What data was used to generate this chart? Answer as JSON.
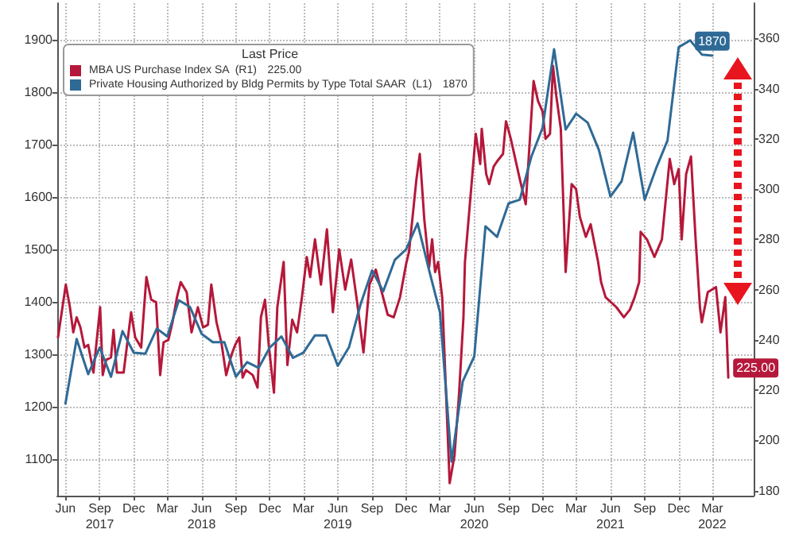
{
  "chart_data": {
    "type": "line",
    "legend_title": "Last Price",
    "legend": "top left",
    "grid": true,
    "marker": "none",
    "line_style": "solid",
    "xlim": [
      "2017-05-10",
      "2022-06-20"
    ],
    "xticks": [
      {
        "value": "2017-06-01",
        "label": "Jun"
      },
      {
        "value": "2017-09-01",
        "label": "Sep\n2017"
      },
      {
        "value": "2017-12-01",
        "label": "Dec"
      },
      {
        "value": "2018-03-01",
        "label": "Mar"
      },
      {
        "value": "2018-06-01",
        "label": "Jun\n2018"
      },
      {
        "value": "2018-09-01",
        "label": "Sep"
      },
      {
        "value": "2018-12-01",
        "label": "Dec"
      },
      {
        "value": "2019-03-01",
        "label": "Mar"
      },
      {
        "value": "2019-06-01",
        "label": "Jun\n2019"
      },
      {
        "value": "2019-09-01",
        "label": "Sep"
      },
      {
        "value": "2019-12-01",
        "label": "Dec"
      },
      {
        "value": "2020-03-01",
        "label": "Mar"
      },
      {
        "value": "2020-06-01",
        "label": "Jun\n2020"
      },
      {
        "value": "2020-09-01",
        "label": "Sep"
      },
      {
        "value": "2020-12-01",
        "label": "Dec"
      },
      {
        "value": "2021-03-01",
        "label": "Mar"
      },
      {
        "value": "2021-06-01",
        "label": "Jun\n2021"
      },
      {
        "value": "2021-09-01",
        "label": "Sep"
      },
      {
        "value": "2021-12-01",
        "label": "Dec"
      },
      {
        "value": "2022-03-01",
        "label": "Mar\n2022"
      }
    ],
    "ylim": [
      1030,
      1970
    ],
    "yticks": [
      1100,
      1200,
      1300,
      1400,
      1500,
      1600,
      1700,
      1800,
      1900
    ],
    "y2lim": [
      178,
      374
    ],
    "y2ticks": [
      180,
      200,
      220,
      240,
      260,
      280,
      300,
      320,
      340,
      360
    ],
    "series": [
      {
        "name": "MBA US Purchase Index SA  (R1)",
        "color": "#b5183a",
        "axis": "y2",
        "x": [
          "2017-05-12",
          "2017-06-02",
          "2017-06-13",
          "2017-06-22",
          "2017-07-01",
          "2017-07-11",
          "2017-07-22",
          "2017-08-01",
          "2017-08-15",
          "2017-09-02",
          "2017-09-09",
          "2017-09-18",
          "2017-10-01",
          "2017-10-08",
          "2017-10-17",
          "2017-11-04",
          "2017-11-24",
          "2017-12-05",
          "2017-12-21",
          "2018-01-04",
          "2018-01-17",
          "2018-01-30",
          "2018-02-10",
          "2018-02-19",
          "2018-03-04",
          "2018-03-15",
          "2018-03-27",
          "2018-04-06",
          "2018-04-22",
          "2018-05-05",
          "2018-05-22",
          "2018-06-05",
          "2018-06-18",
          "2018-06-27",
          "2018-07-11",
          "2018-07-24",
          "2018-08-06",
          "2018-08-20",
          "2018-08-30",
          "2018-09-10",
          "2018-09-19",
          "2018-09-28",
          "2018-10-16",
          "2018-10-29",
          "2018-11-07",
          "2018-11-18",
          "2018-11-28",
          "2018-12-12",
          "2018-12-21",
          "2019-01-07",
          "2019-01-17",
          "2019-01-30",
          "2019-02-12",
          "2019-02-25",
          "2019-03-10",
          "2019-03-19",
          "2019-04-01",
          "2019-04-17",
          "2019-05-03",
          "2019-05-19",
          "2019-06-05",
          "2019-06-21",
          "2019-07-07",
          "2019-07-23",
          "2019-08-09",
          "2019-08-25",
          "2019-09-11",
          "2019-09-27",
          "2019-10-13",
          "2019-10-29",
          "2019-11-15",
          "2019-12-01",
          "2019-12-09",
          "2019-12-29",
          "2020-01-07",
          "2020-01-19",
          "2020-02-01",
          "2020-02-09",
          "2020-02-17",
          "2020-02-25",
          "2020-03-07",
          "2020-03-27",
          "2020-04-09",
          "2020-04-21",
          "2020-05-03",
          "2020-05-07",
          "2020-05-27",
          "2020-06-05",
          "2020-06-17",
          "2020-06-21",
          "2020-07-03",
          "2020-07-11",
          "2020-07-23",
          "2020-08-01",
          "2020-08-17",
          "2020-08-25",
          "2020-09-07",
          "2020-09-19",
          "2020-10-01",
          "2020-10-17",
          "2020-11-07",
          "2020-11-19",
          "2020-12-01",
          "2020-12-09",
          "2020-12-21",
          "2020-12-29",
          "2021-01-07",
          "2021-01-19",
          "2021-02-01",
          "2021-02-17",
          "2021-03-01",
          "2021-03-11",
          "2021-03-27",
          "2021-04-09",
          "2021-04-29",
          "2021-05-07",
          "2021-05-19",
          "2021-06-17",
          "2021-07-07",
          "2021-07-23",
          "2021-08-05",
          "2021-08-17",
          "2021-08-21",
          "2021-09-07",
          "2021-09-27",
          "2021-10-17",
          "2021-11-07",
          "2021-11-19",
          "2021-12-01",
          "2021-12-09",
          "2021-12-21",
          "2022-01-03",
          "2022-01-15",
          "2022-01-27",
          "2022-02-01",
          "2022-02-17",
          "2022-03-11",
          "2022-03-23",
          "2022-04-05",
          "2022-04-13"
        ],
        "values": [
          241,
          262,
          253,
          243,
          249,
          245,
          237,
          238,
          227,
          253,
          226,
          232,
          233,
          244,
          227,
          227,
          251,
          241,
          237,
          265,
          256,
          255,
          226,
          239,
          240,
          247,
          257,
          263,
          259,
          243,
          253,
          245,
          246,
          262,
          247,
          239,
          226,
          234,
          238,
          241,
          225,
          228,
          226,
          221,
          249,
          256,
          238,
          219,
          253,
          271,
          230,
          248,
          243,
          257,
          273,
          265,
          280,
          262,
          284,
          251,
          276,
          260,
          272,
          255,
          235,
          262,
          268,
          259,
          250,
          249,
          257,
          270,
          275,
          304,
          314,
          288,
          269,
          280,
          267,
          271,
          257,
          183,
          194,
          218,
          249,
          271,
          306,
          322,
          310,
          324,
          306,
          302,
          309,
          311,
          314,
          327,
          320,
          312,
          304,
          294,
          343,
          335,
          331,
          320,
          322,
          349,
          337,
          324,
          267,
          302,
          300,
          289,
          281,
          286,
          271,
          263,
          257,
          253,
          249,
          252,
          257,
          263,
          283,
          280,
          273,
          280,
          312,
          302,
          308,
          280,
          306,
          313,
          281,
          253,
          247,
          259,
          261,
          243,
          257,
          225
        ],
        "value_labels": [
          null,
          null,
          null,
          null,
          null,
          null,
          null,
          null,
          null,
          null,
          null,
          null,
          null,
          null,
          null,
          null,
          null,
          null,
          null,
          null,
          null,
          null,
          null,
          null,
          null,
          null,
          null,
          null,
          null,
          null,
          null,
          null,
          null,
          null,
          null,
          null,
          null,
          null,
          null,
          null,
          null,
          null,
          null,
          null,
          null,
          null,
          null,
          null,
          null,
          null,
          null,
          null,
          null,
          null,
          null,
          null,
          null,
          null,
          null,
          null,
          null,
          null,
          null,
          null,
          null,
          null,
          null,
          null,
          null,
          null,
          null,
          null,
          null,
          null,
          null,
          null,
          null,
          null,
          null,
          null,
          null,
          null,
          null,
          null,
          null,
          null,
          null,
          null,
          null,
          null,
          null,
          null,
          null,
          null,
          null,
          null,
          null,
          null,
          null,
          null,
          null,
          null,
          null,
          null,
          null,
          null,
          null,
          null,
          null,
          null,
          null,
          null,
          null,
          null,
          null,
          null,
          null,
          null,
          null,
          null,
          null,
          null,
          null,
          null,
          null,
          null,
          null,
          null,
          null,
          null,
          null,
          null,
          null,
          null,
          null,
          null,
          null,
          null,
          null,
          "225.00"
        ]
      },
      {
        "name": "Private Housing Authorized by Bldg Permits by Type Total SAAR  (L1)",
        "color": "#2f6a96",
        "axis": "y",
        "x": [
          "2017-06",
          "2017-07",
          "2017-08",
          "2017-09",
          "2017-10",
          "2017-11",
          "2017-12",
          "2018-01",
          "2018-02",
          "2018-03",
          "2018-04",
          "2018-05",
          "2018-06",
          "2018-07",
          "2018-08",
          "2018-09",
          "2018-10",
          "2018-11",
          "2018-12",
          "2019-01",
          "2019-02",
          "2019-03",
          "2019-04",
          "2019-05",
          "2019-06",
          "2019-07",
          "2019-08",
          "2019-09",
          "2019-10",
          "2019-11",
          "2019-12",
          "2020-01",
          "2020-02",
          "2020-03",
          "2020-04",
          "2020-05",
          "2020-06",
          "2020-07",
          "2020-08",
          "2020-09",
          "2020-10",
          "2020-11",
          "2020-12",
          "2021-01",
          "2021-02",
          "2021-03",
          "2021-04",
          "2021-05",
          "2021-06",
          "2021-07",
          "2021-08",
          "2021-09",
          "2021-10",
          "2021-11",
          "2021-12",
          "2022-01",
          "2022-02",
          "2022-03"
        ],
        "values": [
          1206,
          1329,
          1262,
          1313,
          1257,
          1344,
          1303,
          1301,
          1349,
          1334,
          1403,
          1390,
          1339,
          1323,
          1323,
          1257,
          1285,
          1274,
          1313,
          1334,
          1293,
          1303,
          1336,
          1336,
          1278,
          1313,
          1395,
          1460,
          1420,
          1480,
          1500,
          1550,
          1460,
          1380,
          1095,
          1248,
          1296,
          1544,
          1524,
          1588,
          1595,
          1677,
          1732,
          1882,
          1729,
          1759,
          1742,
          1690,
          1601,
          1630,
          1723,
          1595,
          1654,
          1708,
          1886,
          1899,
          1872,
          1870
        ],
        "value_labels": [
          null,
          null,
          null,
          null,
          null,
          null,
          null,
          null,
          null,
          null,
          null,
          null,
          null,
          null,
          null,
          null,
          null,
          null,
          null,
          null,
          null,
          null,
          null,
          null,
          null,
          null,
          null,
          null,
          null,
          null,
          null,
          null,
          null,
          null,
          null,
          null,
          null,
          null,
          null,
          null,
          null,
          null,
          null,
          null,
          null,
          null,
          null,
          null,
          null,
          null,
          null,
          null,
          null,
          null,
          null,
          null,
          null,
          "1870"
        ]
      }
    ]
  }
}
